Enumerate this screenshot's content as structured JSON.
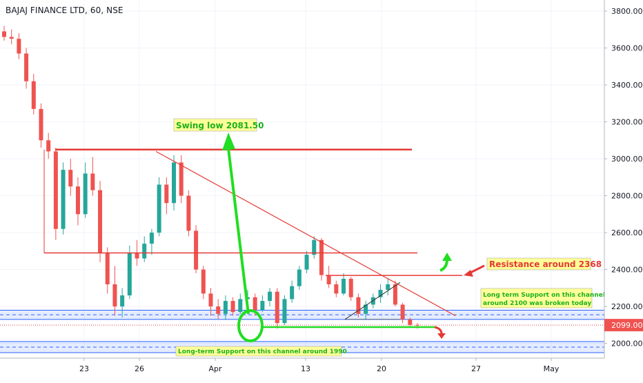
{
  "chart_data": {
    "type": "candlestick",
    "title": "BAJAJ FINANCE LTD, 60, NSE",
    "price_axis": {
      "ticks": [
        2000,
        2200,
        2400,
        2600,
        2800,
        3000,
        3200,
        3400,
        3600,
        3800
      ],
      "tick_labels": [
        "2000.00",
        "2200.00",
        "2400.00",
        "2600.00",
        "2800.00",
        "3000.00",
        "3200.00",
        "3400.00",
        "3600.00",
        "3800.00"
      ],
      "range": [
        1920,
        3860
      ],
      "last_price": 2099,
      "last_price_label": "2099.00"
    },
    "time_axis": {
      "labels": [
        "23",
        "26",
        "Apr",
        "13",
        "20",
        "27",
        "May"
      ]
    },
    "candles": [
      [
        3690,
        3720,
        3640,
        3660
      ],
      [
        3660,
        3700,
        3620,
        3650
      ],
      [
        3650,
        3680,
        3540,
        3570
      ],
      [
        3570,
        3600,
        3380,
        3420
      ],
      [
        3420,
        3460,
        3240,
        3270
      ],
      [
        3270,
        3300,
        3060,
        3100
      ],
      [
        3100,
        3140,
        3000,
        3040
      ],
      [
        3040,
        3060,
        2560,
        2620
      ],
      [
        2620,
        2980,
        2590,
        2940
      ],
      [
        2940,
        3000,
        2800,
        2850
      ],
      [
        2850,
        2900,
        2640,
        2700
      ],
      [
        2700,
        2980,
        2680,
        2920
      ],
      [
        2920,
        3010,
        2800,
        2830
      ],
      [
        2830,
        2880,
        2440,
        2490
      ],
      [
        2490,
        2520,
        2270,
        2320
      ],
      [
        2320,
        2420,
        2150,
        2200
      ],
      [
        2200,
        2300,
        2140,
        2260
      ],
      [
        2260,
        2530,
        2240,
        2490
      ],
      [
        2490,
        2560,
        2420,
        2460
      ],
      [
        2460,
        2580,
        2440,
        2540
      ],
      [
        2540,
        2620,
        2480,
        2600
      ],
      [
        2600,
        2900,
        2580,
        2860
      ],
      [
        2860,
        2900,
        2700,
        2760
      ],
      [
        2760,
        3020,
        2720,
        2980
      ],
      [
        2980,
        3020,
        2760,
        2800
      ],
      [
        2800,
        2830,
        2580,
        2610
      ],
      [
        2610,
        2640,
        2380,
        2400
      ],
      [
        2400,
        2420,
        2240,
        2270
      ],
      [
        2270,
        2300,
        2150,
        2200
      ],
      [
        2200,
        2240,
        2130,
        2160
      ],
      [
        2160,
        2260,
        2130,
        2230
      ],
      [
        2230,
        2250,
        2150,
        2170
      ],
      [
        2170,
        2270,
        2160,
        2240
      ],
      [
        2240,
        2290,
        2210,
        2250
      ],
      [
        2250,
        2270,
        2150,
        2180
      ],
      [
        2180,
        2260,
        2170,
        2230
      ],
      [
        2230,
        2300,
        2200,
        2280
      ],
      [
        2280,
        2300,
        2080,
        2110
      ],
      [
        2110,
        2260,
        2100,
        2240
      ],
      [
        2240,
        2340,
        2220,
        2310
      ],
      [
        2310,
        2420,
        2290,
        2400
      ],
      [
        2400,
        2500,
        2380,
        2480
      ],
      [
        2480,
        2580,
        2460,
        2560
      ],
      [
        2560,
        2570,
        2340,
        2370
      ],
      [
        2370,
        2420,
        2300,
        2320
      ],
      [
        2320,
        2340,
        2250,
        2270
      ],
      [
        2270,
        2380,
        2260,
        2350
      ],
      [
        2350,
        2360,
        2230,
        2250
      ],
      [
        2250,
        2270,
        2140,
        2160
      ],
      [
        2160,
        2230,
        2130,
        2210
      ],
      [
        2210,
        2270,
        2190,
        2250
      ],
      [
        2250,
        2320,
        2220,
        2290
      ],
      [
        2290,
        2350,
        2260,
        2320
      ],
      [
        2320,
        2340,
        2200,
        2210
      ],
      [
        2210,
        2220,
        2110,
        2130
      ],
      [
        2130,
        2140,
        2090,
        2100
      ],
      [
        2100,
        2110,
        2080,
        2099
      ]
    ],
    "annotations": {
      "swing_low": "Swing low 2081.50",
      "resistance": "Resistance around 2368",
      "support_broken_line1": "Long term Support on this channel",
      "support_broken_line2": "around 2100 was broken today",
      "long_term_support": "Long-term Support on this channel around 1990"
    },
    "levels": {
      "resistance_top": 3050,
      "resistance_mid": 2490,
      "resistance_2368": 2368,
      "support_band_top": [
        2130,
        2180
      ],
      "support_band_bottom": [
        1950,
        2010
      ]
    },
    "colors": {
      "up": "#26a69a",
      "down": "#ef5350",
      "drawing_red": "#e53935",
      "drawing_green": "#22dd22",
      "band_blue": "#2962ff",
      "label_fill": "#ffff99"
    }
  }
}
